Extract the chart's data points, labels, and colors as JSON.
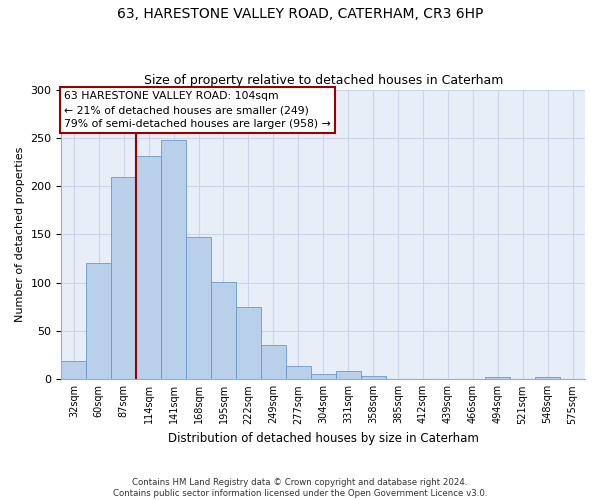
{
  "title": "63, HARESTONE VALLEY ROAD, CATERHAM, CR3 6HP",
  "subtitle": "Size of property relative to detached houses in Caterham",
  "xlabel": "Distribution of detached houses by size in Caterham",
  "ylabel": "Number of detached properties",
  "bin_labels": [
    "32sqm",
    "60sqm",
    "87sqm",
    "114sqm",
    "141sqm",
    "168sqm",
    "195sqm",
    "222sqm",
    "249sqm",
    "277sqm",
    "304sqm",
    "331sqm",
    "358sqm",
    "385sqm",
    "412sqm",
    "439sqm",
    "466sqm",
    "494sqm",
    "521sqm",
    "548sqm",
    "575sqm"
  ],
  "bar_values": [
    19,
    120,
    209,
    231,
    248,
    147,
    101,
    75,
    36,
    14,
    5,
    9,
    3,
    0,
    0,
    0,
    0,
    2,
    0,
    2,
    0
  ],
  "bar_color": "#b8d0ea",
  "bar_edge_color": "#6699cc",
  "vline_color": "#990000",
  "annotation_text": "63 HARESTONE VALLEY ROAD: 104sqm\n← 21% of detached houses are smaller (249)\n79% of semi-detached houses are larger (958) →",
  "annotation_box_color": "white",
  "annotation_box_edge_color": "#990000",
  "ylim": [
    0,
    300
  ],
  "yticks": [
    0,
    50,
    100,
    150,
    200,
    250,
    300
  ],
  "footer_text": "Contains HM Land Registry data © Crown copyright and database right 2024.\nContains public sector information licensed under the Open Government Licence v3.0.",
  "grid_color": "#ccd6e8",
  "background_color": "#e8eef8"
}
